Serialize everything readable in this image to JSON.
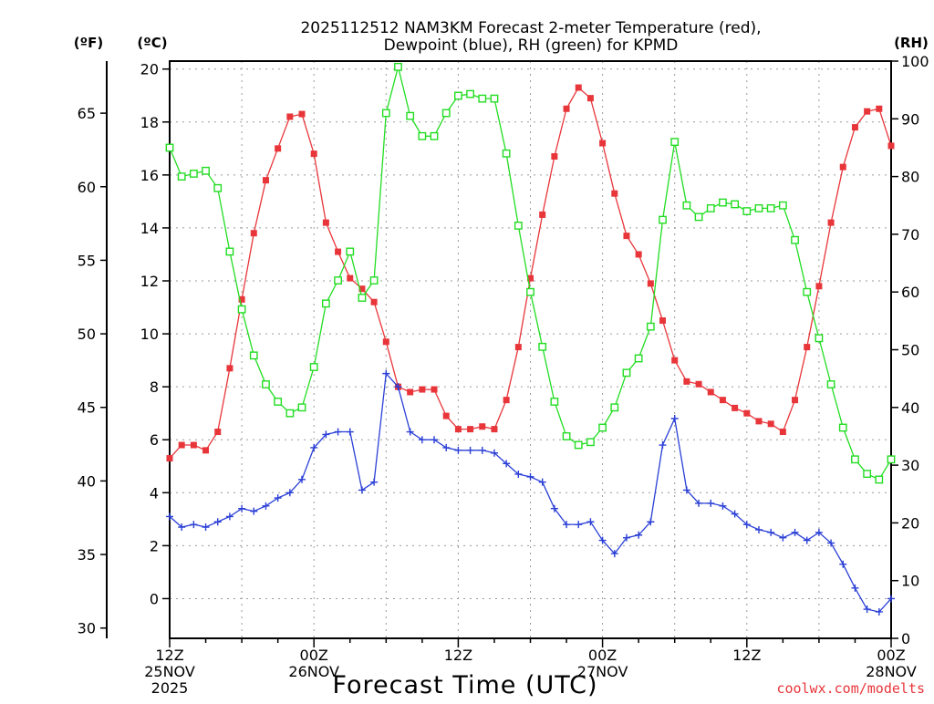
{
  "chart_data": {
    "type": "line",
    "title_line1": "2025112512 NAM3KM Forecast 2-meter Temperature (red),",
    "title_line2": "Dewpoint (blue), RH (green) for KPMD",
    "xlabel": "Forecast Time (UTC)",
    "credit": "coolwx.com/modelts",
    "unit_f": "(ºF)",
    "unit_c": "(ºC)",
    "unit_rh": "(RH)",
    "x_range_hours": [
      0,
      60
    ],
    "x_ticks": [
      {
        "hour": 0,
        "lines": [
          "12Z",
          "25NOV",
          "2025"
        ]
      },
      {
        "hour": 12,
        "lines": [
          "00Z",
          "26NOV"
        ]
      },
      {
        "hour": 24,
        "lines": [
          "12Z"
        ]
      },
      {
        "hour": 36,
        "lines": [
          "00Z",
          "27NOV"
        ]
      },
      {
        "hour": 48,
        "lines": [
          "12Z"
        ]
      },
      {
        "hour": 60,
        "lines": [
          "00Z",
          "28NOV"
        ]
      }
    ],
    "ylim_c": [
      -1.5,
      20.3
    ],
    "yticks_c": [
      "0",
      "2",
      "4",
      "6",
      "8",
      "10",
      "12",
      "14",
      "16",
      "18",
      "20"
    ],
    "yticks_f": [
      "30",
      "35",
      "40",
      "45",
      "50",
      "55",
      "60",
      "65"
    ],
    "ylim_rh": [
      0,
      100
    ],
    "yticks_rh": [
      "0",
      "10",
      "20",
      "30",
      "40",
      "50",
      "60",
      "70",
      "80",
      "90",
      "100"
    ],
    "colors": {
      "temperature": "#e8353a",
      "dewpoint": "#2a3fd6",
      "rh": "#22dd22"
    },
    "series": [
      {
        "name": "Temperature (°C)",
        "color": "#e8353a",
        "marker": "filled-square",
        "axis": "celsius",
        "values": [
          5.3,
          5.8,
          5.8,
          5.6,
          6.3,
          8.7,
          11.3,
          13.8,
          15.8,
          17.0,
          18.2,
          18.3,
          16.8,
          14.2,
          13.1,
          12.1,
          11.7,
          11.2,
          9.7,
          8.0,
          7.8,
          7.9,
          7.9,
          6.9,
          6.4,
          6.4,
          6.5,
          6.4,
          7.5,
          9.5,
          12.1,
          14.5,
          16.7,
          18.5,
          19.3,
          18.9,
          17.2,
          15.3,
          13.7,
          13.0,
          11.9,
          10.5,
          9.0,
          8.2,
          8.1,
          7.8,
          7.5,
          7.2,
          7.0,
          6.7,
          6.6,
          6.3,
          7.5,
          9.5,
          11.8,
          14.2,
          16.3,
          17.8,
          18.4,
          18.5,
          17.1
        ]
      },
      {
        "name": "Dewpoint (°C)",
        "color": "#2a3fd6",
        "marker": "plus",
        "axis": "celsius",
        "values": [
          3.1,
          2.7,
          2.8,
          2.7,
          2.9,
          3.1,
          3.4,
          3.3,
          3.5,
          3.8,
          4.0,
          4.5,
          5.7,
          6.2,
          6.3,
          6.3,
          4.1,
          4.4,
          8.5,
          8.0,
          6.3,
          6.0,
          6.0,
          5.7,
          5.6,
          5.6,
          5.6,
          5.5,
          5.1,
          4.7,
          4.6,
          4.4,
          3.4,
          2.8,
          2.8,
          2.9,
          2.2,
          1.7,
          2.3,
          2.4,
          2.9,
          5.8,
          6.8,
          4.1,
          3.6,
          3.6,
          3.5,
          3.2,
          2.8,
          2.6,
          2.5,
          2.3,
          2.5,
          2.2,
          2.5,
          2.1,
          1.3,
          0.4,
          -0.4,
          -0.5,
          0.0
        ]
      },
      {
        "name": "RH (%)",
        "color": "#22dd22",
        "marker": "open-square",
        "axis": "rh",
        "values": [
          85,
          80,
          80.5,
          81,
          78,
          67,
          57,
          49,
          44,
          41,
          39,
          40,
          47,
          58,
          62,
          67,
          59,
          62,
          91,
          99,
          90.5,
          87,
          87,
          91,
          94,
          94.3,
          93.5,
          93.5,
          84,
          71.5,
          60,
          50.5,
          41,
          35,
          33.5,
          34,
          36.5,
          40,
          46,
          48.5,
          54,
          72.5,
          86,
          75,
          73,
          74.5,
          75.5,
          75.2,
          74,
          74.5,
          74.5,
          75,
          69,
          60,
          52,
          44,
          36.5,
          31,
          28.5,
          27.5,
          31
        ]
      }
    ]
  }
}
